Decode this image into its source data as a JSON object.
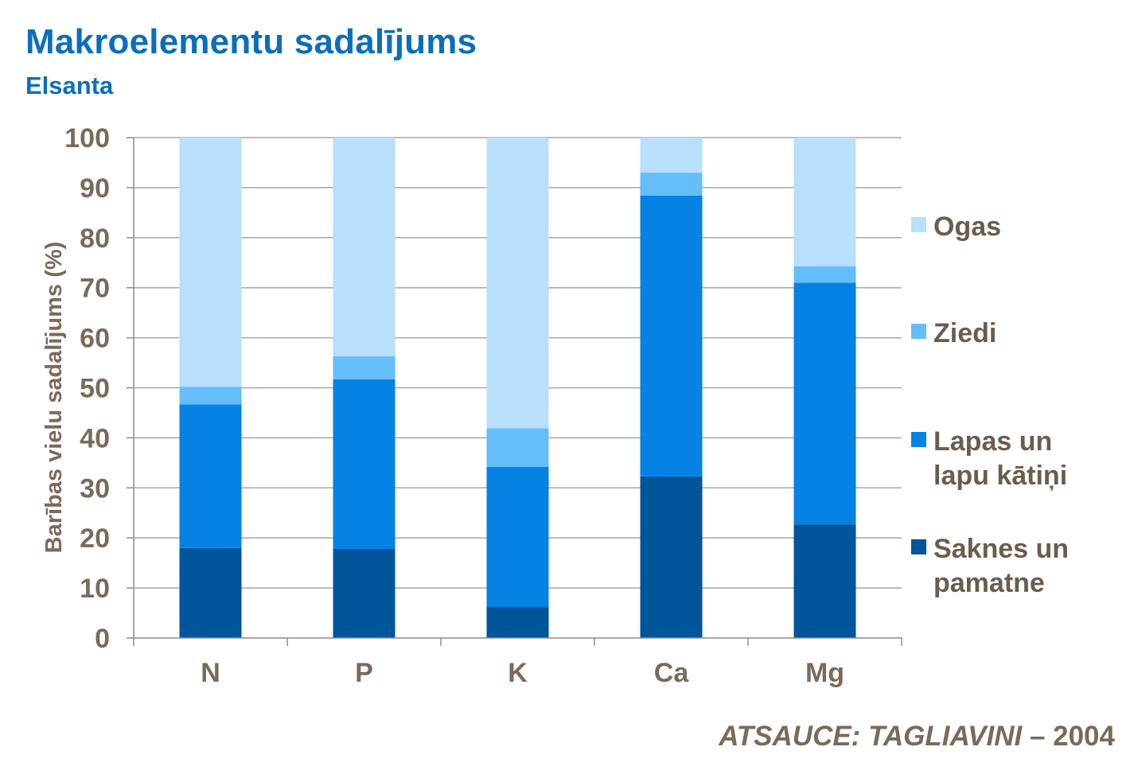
{
  "header": {
    "title": "Makroelementu sadalījums",
    "subtitle": "Elsanta"
  },
  "footer": {
    "source_label": "ATSAUCE: TAGLIAVINI",
    "source_year": "– 2004"
  },
  "chart_data": {
    "type": "bar",
    "stacked": true,
    "title": "Makroelementu sadalījums",
    "subtitle": "Elsanta",
    "xlabel": "",
    "ylabel": "Barības vielu sadalījums (%)",
    "ylim": [
      0,
      100
    ],
    "yticks": [
      0,
      10,
      20,
      30,
      40,
      50,
      60,
      70,
      80,
      90,
      100
    ],
    "grid": true,
    "legend_position": "right",
    "categories": [
      "N",
      "P",
      "K",
      "Ca",
      "Mg"
    ],
    "series": [
      {
        "name": "Sakn&es un pamatne",
        "color": "#01559a",
        "values": [
          18,
          17.8,
          6.2,
          32.3,
          22.7
        ]
      },
      {
        "name": "Lapas un lapu kātiņi",
        "color": "#0582e3",
        "values": [
          28.7,
          33.9,
          28,
          56.1,
          48.3
        ]
      },
      {
        "name": "Ziedi",
        "color": "#66bdfb",
        "values": [
          3.5,
          4.6,
          7.7,
          4.6,
          3.3
        ]
      },
      {
        "name": "Ogas",
        "color": "#b8dffc",
        "values": [
          49.8,
          43.7,
          58.1,
          7,
          25.7
        ]
      }
    ],
    "legend_lines": [
      [
        "Ogas"
      ],
      [
        "Ziedi"
      ],
      [
        "Lapas un",
        "lapu kātiņi"
      ],
      [
        "Saknes un",
        "pamatne"
      ]
    ]
  }
}
